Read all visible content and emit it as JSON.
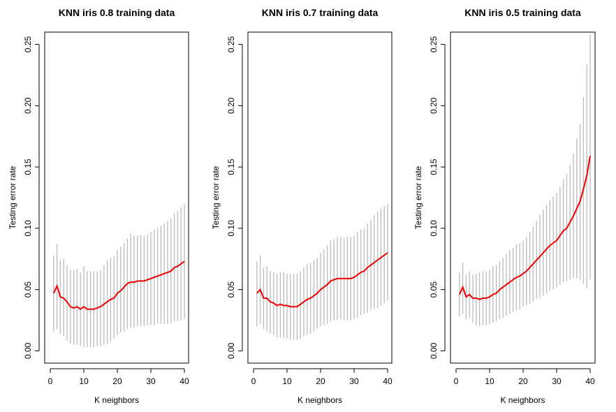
{
  "chart_data": [
    {
      "type": "line",
      "title": "KNN iris  0.8 training data",
      "xlabel": "K neighbors",
      "ylabel": "Testing error rate",
      "xlim": [
        0,
        40
      ],
      "ylim": [
        -0.01,
        0.26
      ],
      "xticks": [
        "0",
        "10",
        "20",
        "30",
        "40"
      ],
      "yticks": [
        "0.00",
        "0.05",
        "0.10",
        "0.15",
        "0.20",
        "0.25"
      ],
      "x": [
        1,
        2,
        3,
        4,
        5,
        6,
        7,
        8,
        9,
        10,
        11,
        12,
        13,
        14,
        15,
        16,
        17,
        18,
        19,
        20,
        21,
        22,
        23,
        24,
        25,
        26,
        27,
        28,
        29,
        30,
        31,
        32,
        33,
        34,
        35,
        36,
        37,
        38,
        39,
        40
      ],
      "series": [
        {
          "color": "#ee0000",
          "values": [
            0.047,
            0.053,
            0.044,
            0.043,
            0.04,
            0.036,
            0.035,
            0.036,
            0.034,
            0.036,
            0.034,
            0.034,
            0.034,
            0.035,
            0.036,
            0.038,
            0.04,
            0.042,
            0.043,
            0.047,
            0.049,
            0.052,
            0.055,
            0.056,
            0.056,
            0.057,
            0.057,
            0.057,
            0.058,
            0.059,
            0.06,
            0.061,
            0.062,
            0.063,
            0.064,
            0.065,
            0.068,
            0.069,
            0.071,
            0.073
          ]
        }
      ],
      "error_bars": {
        "color": "#bbbbbb",
        "lower": [
          0.016,
          0.018,
          0.014,
          0.012,
          0.008,
          0.006,
          0.005,
          0.005,
          0.004,
          0.003,
          0.003,
          0.003,
          0.003,
          0.004,
          0.004,
          0.005,
          0.006,
          0.008,
          0.01,
          0.013,
          0.015,
          0.016,
          0.018,
          0.019,
          0.019,
          0.02,
          0.02,
          0.02,
          0.021,
          0.021,
          0.021,
          0.022,
          0.022,
          0.022,
          0.022,
          0.023,
          0.024,
          0.024,
          0.025,
          0.026
        ],
        "upper": [
          0.078,
          0.087,
          0.074,
          0.075,
          0.07,
          0.066,
          0.066,
          0.067,
          0.064,
          0.069,
          0.065,
          0.065,
          0.065,
          0.065,
          0.066,
          0.07,
          0.074,
          0.076,
          0.077,
          0.082,
          0.085,
          0.088,
          0.092,
          0.096,
          0.094,
          0.094,
          0.095,
          0.094,
          0.095,
          0.097,
          0.099,
          0.1,
          0.102,
          0.104,
          0.106,
          0.108,
          0.112,
          0.114,
          0.117,
          0.12
        ]
      }
    },
    {
      "type": "line",
      "title": "KNN iris  0.7 training data",
      "xlabel": "K neighbors",
      "ylabel": "Testing error rate",
      "xlim": [
        0,
        40
      ],
      "ylim": [
        -0.01,
        0.26
      ],
      "xticks": [
        "0",
        "10",
        "20",
        "30",
        "40"
      ],
      "yticks": [
        "0.00",
        "0.05",
        "0.10",
        "0.15",
        "0.20",
        "0.25"
      ],
      "x": [
        1,
        2,
        3,
        4,
        5,
        6,
        7,
        8,
        9,
        10,
        11,
        12,
        13,
        14,
        15,
        16,
        17,
        18,
        19,
        20,
        21,
        22,
        23,
        24,
        25,
        26,
        27,
        28,
        29,
        30,
        31,
        32,
        33,
        34,
        35,
        36,
        37,
        38,
        39,
        40
      ],
      "series": [
        {
          "color": "#ee0000",
          "values": [
            0.047,
            0.05,
            0.043,
            0.043,
            0.04,
            0.039,
            0.037,
            0.038,
            0.037,
            0.037,
            0.036,
            0.036,
            0.036,
            0.038,
            0.04,
            0.042,
            0.043,
            0.045,
            0.047,
            0.05,
            0.052,
            0.054,
            0.057,
            0.058,
            0.059,
            0.059,
            0.059,
            0.059,
            0.059,
            0.06,
            0.062,
            0.064,
            0.065,
            0.068,
            0.07,
            0.072,
            0.074,
            0.076,
            0.078,
            0.08
          ]
        }
      ],
      "error_bars": {
        "color": "#bbbbbb",
        "lower": [
          0.02,
          0.022,
          0.018,
          0.016,
          0.014,
          0.013,
          0.011,
          0.011,
          0.01,
          0.01,
          0.009,
          0.009,
          0.009,
          0.01,
          0.012,
          0.013,
          0.014,
          0.016,
          0.018,
          0.02,
          0.021,
          0.022,
          0.024,
          0.025,
          0.025,
          0.026,
          0.025,
          0.025,
          0.025,
          0.026,
          0.027,
          0.029,
          0.03,
          0.031,
          0.033,
          0.034,
          0.035,
          0.037,
          0.039,
          0.041
        ],
        "upper": [
          0.073,
          0.078,
          0.068,
          0.069,
          0.065,
          0.064,
          0.063,
          0.064,
          0.064,
          0.063,
          0.063,
          0.063,
          0.063,
          0.065,
          0.068,
          0.071,
          0.072,
          0.074,
          0.076,
          0.08,
          0.083,
          0.086,
          0.09,
          0.091,
          0.093,
          0.093,
          0.092,
          0.093,
          0.093,
          0.094,
          0.097,
          0.099,
          0.1,
          0.104,
          0.107,
          0.111,
          0.114,
          0.116,
          0.118,
          0.12
        ]
      }
    },
    {
      "type": "line",
      "title": "KNN iris  0.5 training data",
      "xlabel": "K neighbors",
      "ylabel": "Testing error rate",
      "xlim": [
        0,
        40
      ],
      "ylim": [
        -0.01,
        0.26
      ],
      "xticks": [
        "0",
        "10",
        "20",
        "30",
        "40"
      ],
      "yticks": [
        "0.00",
        "0.05",
        "0.10",
        "0.15",
        "0.20",
        "0.25"
      ],
      "x": [
        1,
        2,
        3,
        4,
        5,
        6,
        7,
        8,
        9,
        10,
        11,
        12,
        13,
        14,
        15,
        16,
        17,
        18,
        19,
        20,
        21,
        22,
        23,
        24,
        25,
        26,
        27,
        28,
        29,
        30,
        31,
        32,
        33,
        34,
        35,
        36,
        37,
        38,
        39,
        40
      ],
      "series": [
        {
          "color": "#ee0000",
          "values": [
            0.046,
            0.052,
            0.044,
            0.046,
            0.043,
            0.043,
            0.042,
            0.043,
            0.043,
            0.044,
            0.046,
            0.047,
            0.05,
            0.052,
            0.054,
            0.056,
            0.058,
            0.06,
            0.061,
            0.063,
            0.065,
            0.068,
            0.071,
            0.074,
            0.077,
            0.08,
            0.083,
            0.086,
            0.088,
            0.09,
            0.094,
            0.098,
            0.1,
            0.105,
            0.11,
            0.116,
            0.122,
            0.132,
            0.143,
            0.159
          ]
        }
      ],
      "error_bars": {
        "color": "#bbbbbb",
        "lower": [
          0.028,
          0.03,
          0.026,
          0.027,
          0.023,
          0.021,
          0.02,
          0.021,
          0.021,
          0.022,
          0.023,
          0.024,
          0.026,
          0.027,
          0.029,
          0.03,
          0.032,
          0.033,
          0.034,
          0.036,
          0.037,
          0.038,
          0.04,
          0.042,
          0.043,
          0.045,
          0.047,
          0.049,
          0.05,
          0.052,
          0.054,
          0.056,
          0.057,
          0.058,
          0.059,
          0.059,
          0.058,
          0.055,
          0.051,
          0.058
        ],
        "upper": [
          0.064,
          0.072,
          0.062,
          0.065,
          0.062,
          0.063,
          0.064,
          0.065,
          0.065,
          0.066,
          0.069,
          0.07,
          0.073,
          0.076,
          0.079,
          0.082,
          0.084,
          0.087,
          0.088,
          0.09,
          0.093,
          0.097,
          0.101,
          0.106,
          0.111,
          0.115,
          0.119,
          0.123,
          0.126,
          0.129,
          0.134,
          0.14,
          0.144,
          0.152,
          0.161,
          0.173,
          0.185,
          0.207,
          0.234,
          0.258
        ]
      }
    }
  ]
}
